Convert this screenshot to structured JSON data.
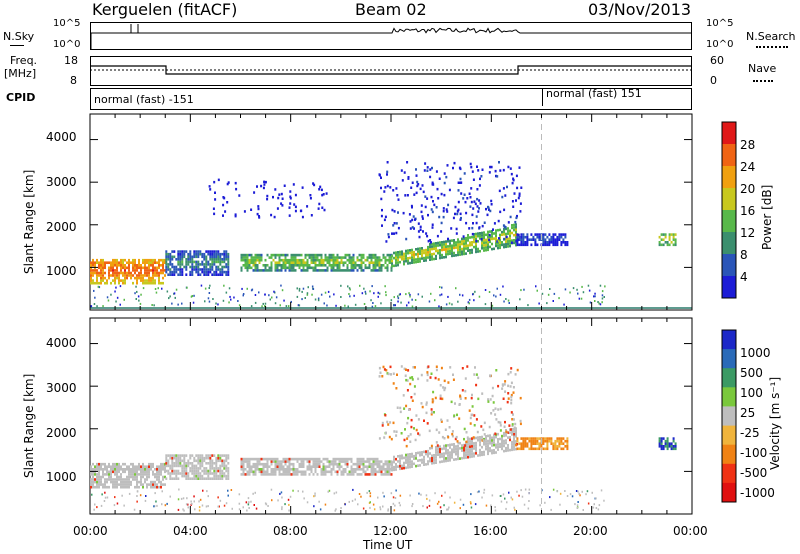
{
  "header": {
    "station": "Kerguelen (fitACF)",
    "beam": "Beam 02",
    "date": "03/Nov/2013"
  },
  "panels": {
    "nsky": {
      "label": "N.Sky",
      "right_label": "N.Search",
      "left_ticks": [
        "10^5",
        "10^0"
      ],
      "right_ticks": [
        "10^5",
        "10^0"
      ]
    },
    "freq": {
      "label_line1": "Freq.",
      "label_line2": "[MHz]",
      "right_label": "Nave",
      "left_ticks": [
        "18",
        "8"
      ],
      "right_ticks": [
        "60",
        "0"
      ]
    },
    "cpid": {
      "label": "CPID",
      "mode1": "normal (fast) -151",
      "mode2": "normal (fast) 151"
    }
  },
  "chart_data": [
    {
      "type": "heatmap",
      "title": "",
      "ylabel": "Slant Range [km]",
      "yticks": [
        "1000",
        "2000",
        "3000",
        "4000"
      ],
      "ylim": [
        0,
        4600
      ],
      "xlim": [
        "00:00",
        "24:00"
      ],
      "colorbar": {
        "label": "Power [dB]",
        "ticks": [
          "4",
          "8",
          "12",
          "16",
          "20",
          "24",
          "28"
        ],
        "colors": [
          "#1c1cd6",
          "#2a55b8",
          "#3b8f6e",
          "#58b84a",
          "#c8c81e",
          "#f0a010",
          "#f06414",
          "#e01818"
        ]
      },
      "echo_bands": [
        {
          "start": "00:00",
          "end": "03:00",
          "range_low": 600,
          "range_high": 1200,
          "power_db": 26
        },
        {
          "start": "03:00",
          "end": "05:30",
          "range_low": 800,
          "range_high": 1400,
          "power_db": 10
        },
        {
          "start": "06:00",
          "end": "12:00",
          "range_low": 900,
          "range_high": 1300,
          "power_db": 16
        },
        {
          "start": "12:00",
          "end": "17:00",
          "range_low": 1000,
          "range_high": 2000,
          "power_db": 18
        },
        {
          "start": "17:00",
          "end": "19:00",
          "range_low": 1500,
          "range_high": 1800,
          "power_db": 6
        },
        {
          "start": "22:40",
          "end": "23:20",
          "range_low": 1500,
          "range_high": 1800,
          "power_db": 18
        }
      ]
    },
    {
      "type": "heatmap",
      "title": "",
      "ylabel": "Slant Range [km]",
      "yticks": [
        "1000",
        "2000",
        "3000",
        "4000"
      ],
      "ylim": [
        0,
        4600
      ],
      "xlim": [
        "00:00",
        "24:00"
      ],
      "xlabel": "Time UT",
      "xticks": [
        "00:00",
        "04:00",
        "08:00",
        "12:00",
        "16:00",
        "20:00",
        "00:00"
      ],
      "colorbar": {
        "label": "Velocity [m s⁻¹]",
        "ticks": [
          "1000",
          "500",
          "100",
          "25",
          "-25",
          "-100",
          "-500",
          "-1000"
        ],
        "colors": [
          "#1c28c8",
          "#2a6ab8",
          "#3b9a64",
          "#7ac83c",
          "#bebebe",
          "#f0b43c",
          "#f08214",
          "#f03214",
          "#e01010"
        ]
      }
    }
  ]
}
